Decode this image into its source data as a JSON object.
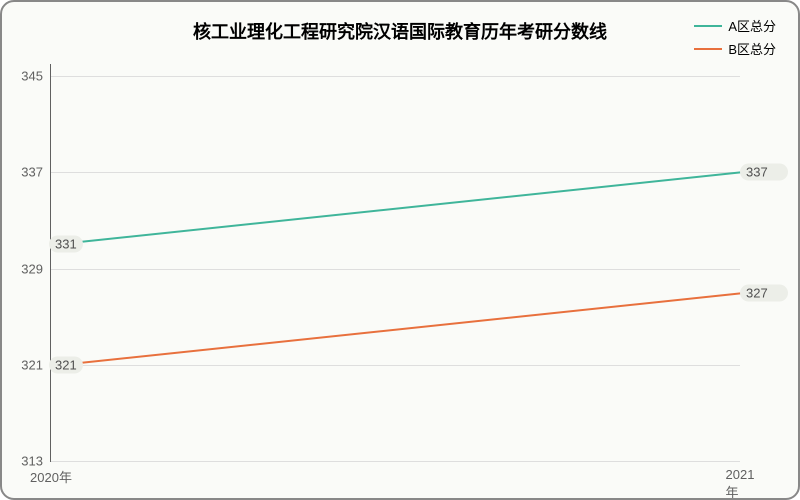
{
  "chart": {
    "type": "line",
    "title": "核工业理化工程研究院汉语国际教育历年考研分数线",
    "title_fontsize": 18,
    "background_color": "#fafbf8",
    "border_color": "#888888",
    "axis_color": "#606060",
    "grid_color": "#dedede",
    "label_fontsize": 13,
    "tick_fontsize": 13,
    "ylim": [
      313,
      346
    ],
    "yticks": [
      313,
      321,
      329,
      337,
      345
    ],
    "ytick_labels": [
      "313",
      "321",
      "329",
      "337",
      "345"
    ],
    "categories": [
      "2020年",
      "2021年"
    ],
    "series": [
      {
        "name": "A区总分",
        "color": "#3fb59a",
        "values": [
          331,
          337
        ],
        "point_labels": [
          "331",
          "337"
        ]
      },
      {
        "name": "B区总分",
        "color": "#e8703d",
        "values": [
          321,
          327
        ],
        "point_labels": [
          "321",
          "327"
        ]
      }
    ],
    "legend": {
      "position": "top-right",
      "items": [
        "A区总分",
        "B区总分"
      ]
    },
    "point_label_bg": "#eceee8"
  }
}
